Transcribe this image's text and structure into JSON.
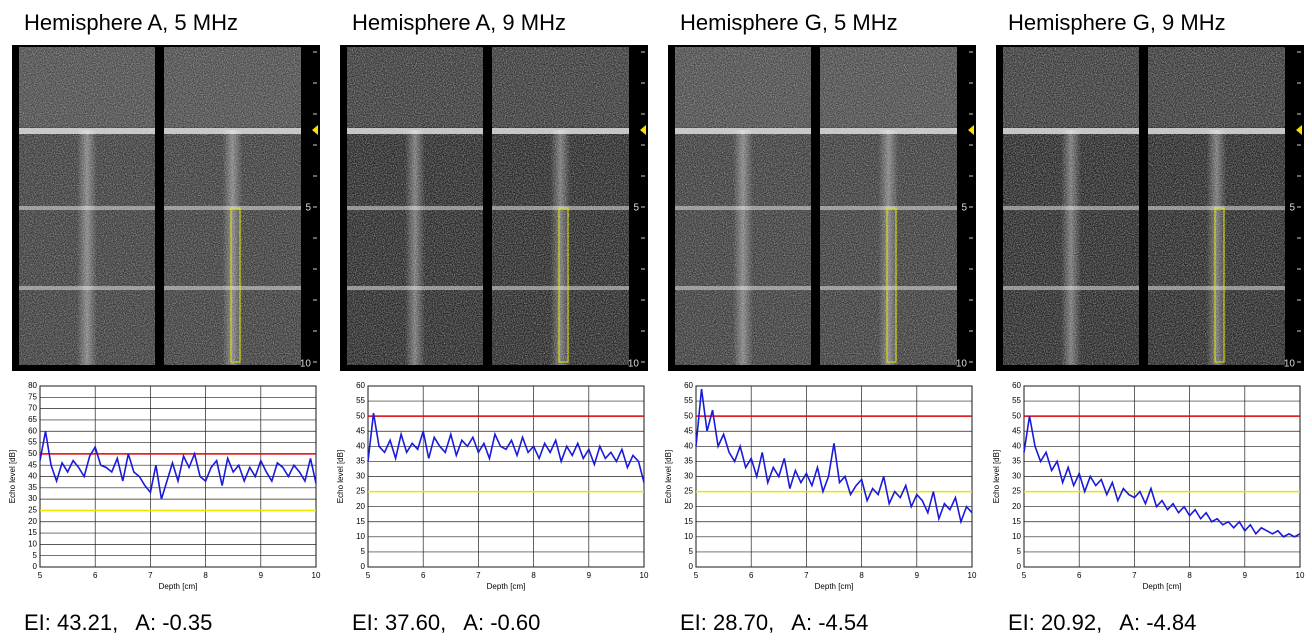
{
  "chart_data": [
    {
      "type": "line",
      "title": "Hemisphere A, 5 MHz",
      "caption": "EI: 43.21,   A: -0.35",
      "image_scale_labels": [
        "5",
        "10"
      ],
      "x_label": "Depth [cm]",
      "y_label": "Echo level [dB]",
      "xlim": [
        5,
        10
      ],
      "xticks": [
        5,
        6,
        7,
        8,
        9,
        10
      ],
      "ylim": [
        0,
        80
      ],
      "yticks": [
        0,
        5,
        10,
        15,
        20,
        25,
        30,
        35,
        40,
        45,
        50,
        55,
        60,
        65,
        70,
        75,
        80
      ],
      "grid": true,
      "hlines": [
        {
          "value": 50,
          "color": "#e00000"
        },
        {
          "value": 25,
          "color": "#e6e600"
        }
      ],
      "x": [
        5,
        5.1,
        5.2,
        5.3,
        5.4,
        5.5,
        5.6,
        5.7,
        5.8,
        5.9,
        6,
        6.1,
        6.2,
        6.3,
        6.4,
        6.5,
        6.6,
        6.7,
        6.8,
        6.9,
        7,
        7.1,
        7.2,
        7.3,
        7.4,
        7.5,
        7.6,
        7.7,
        7.8,
        7.9,
        8,
        8.1,
        8.2,
        8.3,
        8.4,
        8.5,
        8.6,
        8.7,
        8.8,
        8.9,
        9,
        9.1,
        9.2,
        9.3,
        9.4,
        9.5,
        9.6,
        9.7,
        9.8,
        9.9,
        10
      ],
      "series": [
        {
          "color": "#1a1adc",
          "values": [
            47,
            60,
            45,
            38,
            46,
            42,
            47,
            44,
            40,
            49,
            53,
            45,
            44,
            42,
            48,
            38,
            50,
            42,
            40,
            36,
            33,
            45,
            30,
            38,
            46,
            38,
            49,
            44,
            50,
            40,
            38,
            44,
            47,
            36,
            48,
            42,
            45,
            38,
            44,
            40,
            47,
            42,
            38,
            46,
            44,
            40,
            45,
            42,
            38,
            48,
            37
          ]
        }
      ]
    },
    {
      "type": "line",
      "title": "Hemisphere A, 9 MHz",
      "caption": "EI: 37.60,   A: -0.60",
      "image_scale_labels": [
        "5",
        "10"
      ],
      "x_label": "Depth [cm]",
      "y_label": "Echo level [dB]",
      "xlim": [
        5,
        10
      ],
      "xticks": [
        5,
        6,
        7,
        8,
        9,
        10
      ],
      "ylim": [
        0,
        60
      ],
      "yticks": [
        0,
        5,
        10,
        15,
        20,
        25,
        30,
        35,
        40,
        45,
        50,
        55,
        60
      ],
      "grid": true,
      "hlines": [
        {
          "value": 50,
          "color": "#e00000"
        },
        {
          "value": 25,
          "color": "#e6e600"
        }
      ],
      "x": [
        5,
        5.1,
        5.2,
        5.3,
        5.4,
        5.5,
        5.6,
        5.7,
        5.8,
        5.9,
        6,
        6.1,
        6.2,
        6.3,
        6.4,
        6.5,
        6.6,
        6.7,
        6.8,
        6.9,
        7,
        7.1,
        7.2,
        7.3,
        7.4,
        7.5,
        7.6,
        7.7,
        7.8,
        7.9,
        8,
        8.1,
        8.2,
        8.3,
        8.4,
        8.5,
        8.6,
        8.7,
        8.8,
        8.9,
        9,
        9.1,
        9.2,
        9.3,
        9.4,
        9.5,
        9.6,
        9.7,
        9.8,
        9.9,
        10
      ],
      "series": [
        {
          "color": "#1a1adc",
          "values": [
            35,
            51,
            40,
            38,
            42,
            36,
            44,
            38,
            41,
            39,
            45,
            36,
            43,
            40,
            38,
            44,
            37,
            42,
            40,
            43,
            38,
            41,
            36,
            44,
            40,
            39,
            42,
            37,
            43,
            38,
            40,
            36,
            41,
            38,
            42,
            35,
            40,
            37,
            41,
            36,
            39,
            34,
            40,
            36,
            38,
            35,
            39,
            33,
            37,
            35,
            28
          ]
        }
      ]
    },
    {
      "type": "line",
      "title": "Hemisphere G, 5 MHz",
      "caption": "EI: 28.70,   A: -4.54",
      "image_scale_labels": [
        "5",
        "10"
      ],
      "x_label": "Depth [cm]",
      "y_label": "Echo level [dB]",
      "xlim": [
        5,
        10
      ],
      "xticks": [
        5,
        6,
        7,
        8,
        9,
        10
      ],
      "ylim": [
        0,
        60
      ],
      "yticks": [
        0,
        5,
        10,
        15,
        20,
        25,
        30,
        35,
        40,
        45,
        50,
        55,
        60
      ],
      "grid": true,
      "hlines": [
        {
          "value": 50,
          "color": "#e00000"
        },
        {
          "value": 25,
          "color": "#e6e600"
        }
      ],
      "x": [
        5,
        5.1,
        5.2,
        5.3,
        5.4,
        5.5,
        5.6,
        5.7,
        5.8,
        5.9,
        6,
        6.1,
        6.2,
        6.3,
        6.4,
        6.5,
        6.6,
        6.7,
        6.8,
        6.9,
        7,
        7.1,
        7.2,
        7.3,
        7.4,
        7.5,
        7.6,
        7.7,
        7.8,
        7.9,
        8,
        8.1,
        8.2,
        8.3,
        8.4,
        8.5,
        8.6,
        8.7,
        8.8,
        8.9,
        9,
        9.1,
        9.2,
        9.3,
        9.4,
        9.5,
        9.6,
        9.7,
        9.8,
        9.9,
        10
      ],
      "series": [
        {
          "color": "#1a1adc",
          "values": [
            40,
            59,
            45,
            52,
            40,
            44,
            38,
            35,
            40,
            33,
            36,
            30,
            38,
            28,
            33,
            30,
            36,
            26,
            32,
            28,
            31,
            27,
            33,
            25,
            30,
            41,
            28,
            30,
            24,
            27,
            29,
            22,
            26,
            24,
            30,
            21,
            25,
            23,
            27,
            20,
            24,
            22,
            18,
            25,
            16,
            21,
            19,
            23,
            15,
            20,
            18
          ]
        }
      ]
    },
    {
      "type": "line",
      "title": "Hemisphere G, 9 MHz",
      "caption": "EI: 20.92,   A: -4.84",
      "image_scale_labels": [
        "5",
        "10"
      ],
      "x_label": "Depth [cm]",
      "y_label": "Echo level [dB]",
      "xlim": [
        5,
        10
      ],
      "xticks": [
        5,
        6,
        7,
        8,
        9,
        10
      ],
      "ylim": [
        0,
        60
      ],
      "yticks": [
        0,
        5,
        10,
        15,
        20,
        25,
        30,
        35,
        40,
        45,
        50,
        55,
        60
      ],
      "grid": true,
      "hlines": [
        {
          "value": 50,
          "color": "#e00000"
        },
        {
          "value": 25,
          "color": "#e6e600"
        }
      ],
      "x": [
        5,
        5.1,
        5.2,
        5.3,
        5.4,
        5.5,
        5.6,
        5.7,
        5.8,
        5.9,
        6,
        6.1,
        6.2,
        6.3,
        6.4,
        6.5,
        6.6,
        6.7,
        6.8,
        6.9,
        7,
        7.1,
        7.2,
        7.3,
        7.4,
        7.5,
        7.6,
        7.7,
        7.8,
        7.9,
        8,
        8.1,
        8.2,
        8.3,
        8.4,
        8.5,
        8.6,
        8.7,
        8.8,
        8.9,
        9,
        9.1,
        9.2,
        9.3,
        9.4,
        9.5,
        9.6,
        9.7,
        9.8,
        9.9,
        10
      ],
      "series": [
        {
          "color": "#1a1adc",
          "values": [
            38,
            50,
            40,
            35,
            38,
            32,
            35,
            28,
            33,
            27,
            31,
            25,
            30,
            27,
            29,
            24,
            28,
            22,
            26,
            24,
            23,
            25,
            21,
            26,
            20,
            22,
            19,
            21,
            18,
            20,
            17,
            19,
            16,
            18,
            15,
            16,
            14,
            15,
            13,
            15,
            12,
            14,
            11,
            13,
            12,
            11,
            12,
            10,
            11,
            10,
            11
          ]
        }
      ]
    }
  ]
}
